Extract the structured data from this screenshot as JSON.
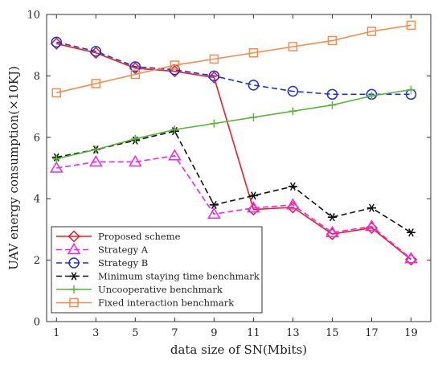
{
  "chart_data": {
    "type": "line",
    "xlabel": "data size of SN(Mbits)",
    "ylabel": "UAV energy consumption(×10KJ)",
    "x": [
      1,
      3,
      5,
      7,
      9,
      11,
      13,
      15,
      17,
      19
    ],
    "xticks": [
      "1",
      "3",
      "5",
      "7",
      "9",
      "11",
      "13",
      "15",
      "17",
      "19"
    ],
    "yticks": [
      "0",
      "2",
      "4",
      "6",
      "8",
      "10"
    ],
    "xlim": [
      0.5,
      20
    ],
    "ylim": [
      0,
      10
    ],
    "grid": false,
    "legend_position": "bottom-left",
    "series": [
      {
        "name": "Proposed scheme",
        "color": "#ee1c25",
        "marker": "diamond",
        "dash": "solid",
        "values": [
          9.05,
          8.75,
          8.25,
          8.15,
          7.95,
          3.65,
          3.72,
          2.85,
          3.05,
          2.02
        ]
      },
      {
        "name": "Strategy A",
        "color": "#f026f0",
        "marker": "triangle",
        "dash": "dashed",
        "values": [
          5.0,
          5.2,
          5.2,
          5.4,
          3.5,
          3.7,
          3.8,
          2.9,
          3.1,
          2.05
        ]
      },
      {
        "name": "Strategy B",
        "color": "#1f2fd8",
        "marker": "circle",
        "dash": "dashed",
        "values": [
          9.1,
          8.8,
          8.3,
          8.2,
          8.0,
          7.7,
          7.5,
          7.4,
          7.4,
          7.4
        ]
      },
      {
        "name": "Minimum staying time benchmark",
        "color": "#111111",
        "marker": "asterisk",
        "dash": "dashed",
        "values": [
          5.35,
          5.6,
          5.9,
          6.2,
          3.8,
          4.1,
          4.4,
          3.4,
          3.7,
          2.9
        ]
      },
      {
        "name": "Uncooperative benchmark",
        "color": "#5db33a",
        "marker": "plus",
        "dash": "solid",
        "values": [
          5.3,
          5.6,
          5.95,
          6.25,
          6.45,
          6.65,
          6.85,
          7.05,
          7.35,
          7.55
        ]
      },
      {
        "name": "Fixed interaction benchmark",
        "color": "#f58b4c",
        "marker": "square",
        "dash": "solid",
        "values": [
          7.45,
          7.75,
          8.05,
          8.35,
          8.55,
          8.75,
          8.95,
          9.15,
          9.45,
          9.65
        ]
      }
    ]
  }
}
